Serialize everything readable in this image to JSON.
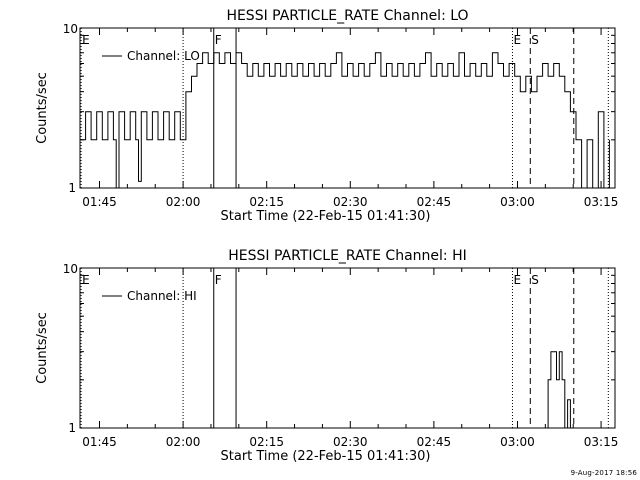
{
  "footer_date": "9-Aug-2017 18:56",
  "chart_data": [
    {
      "type": "line",
      "title": "HESSI PARTICLE_RATE Channel: LO",
      "xlabel": "Start Time (22-Feb-15 01:41:30)",
      "ylabel": "Counts/sec",
      "y_scale": "log",
      "ylim": [
        1,
        10
      ],
      "y_tick_labels": [
        "1",
        "10"
      ],
      "x_unit": "minutes after 01:41:30",
      "xlim": [
        0,
        96
      ],
      "x_ticks": [
        {
          "value": 3.5,
          "label": "01:45"
        },
        {
          "value": 18.5,
          "label": "02:00"
        },
        {
          "value": 33.5,
          "label": "02:15"
        },
        {
          "value": 48.5,
          "label": "02:30"
        },
        {
          "value": 63.5,
          "label": "02:45"
        },
        {
          "value": 78.5,
          "label": "03:00"
        },
        {
          "value": 93.5,
          "label": "03:15"
        }
      ],
      "legend": {
        "label": "Channel: LO",
        "position": "top-left"
      },
      "markers": [
        {
          "x": 0.2,
          "label": "E",
          "style": "dotted"
        },
        {
          "x": 18.5,
          "label": "",
          "style": "dotted"
        },
        {
          "x": 24.0,
          "label": "F",
          "style": "solid"
        },
        {
          "x": 28.0,
          "label": "",
          "style": "solid"
        },
        {
          "x": 77.6,
          "label": "E",
          "style": "dotted"
        },
        {
          "x": 80.8,
          "label": "S",
          "style": "dashed"
        },
        {
          "x": 88.6,
          "label": "",
          "style": "dashed"
        },
        {
          "x": 94.8,
          "label": "",
          "style": "dotted"
        }
      ],
      "series": [
        {
          "x": [
            0,
            1,
            2,
            3,
            4,
            5,
            6,
            6.5,
            7,
            8,
            9,
            10,
            10.5,
            11,
            12,
            13,
            14,
            15,
            16,
            17,
            18,
            18.5,
            19,
            20,
            21,
            22,
            23,
            24,
            25,
            26,
            27,
            28,
            29,
            30,
            31,
            32,
            33,
            34,
            35,
            36,
            37,
            38,
            39,
            40,
            41,
            42,
            43,
            44,
            45,
            46,
            47,
            48,
            49,
            50,
            51,
            52,
            53,
            54,
            55,
            56,
            57,
            58,
            59,
            60,
            61,
            62,
            63,
            64,
            65,
            66,
            67,
            68,
            69,
            70,
            71,
            72,
            73,
            74,
            75,
            76,
            77,
            78,
            79,
            80,
            81,
            82,
            83,
            84,
            85,
            86,
            87,
            88,
            89,
            90,
            90.5,
            91,
            92,
            93,
            94,
            95
          ],
          "y": [
            2,
            3,
            2,
            3,
            2,
            3,
            2,
            1,
            3,
            2,
            3,
            2,
            1.1,
            3,
            2,
            3,
            2,
            3,
            2,
            3,
            2,
            2,
            4,
            5,
            6,
            7,
            6,
            7,
            6,
            7,
            6,
            7,
            6,
            5,
            6,
            5,
            6,
            5,
            6,
            5,
            6,
            5,
            6,
            5,
            6,
            5,
            6,
            5,
            6,
            7,
            5,
            6,
            5,
            6,
            5,
            6,
            7,
            5,
            6,
            5,
            6,
            5,
            6,
            5,
            6,
            7,
            5,
            6,
            5,
            6,
            5,
            7,
            5,
            6,
            5,
            6,
            5,
            7,
            6,
            5,
            6,
            5,
            4,
            5,
            4,
            5,
            6,
            5,
            6,
            5,
            4,
            3,
            2,
            1,
            1,
            2,
            1,
            3,
            1,
            2
          ]
        }
      ]
    },
    {
      "type": "line",
      "title": "HESSI PARTICLE_RATE Channel: HI",
      "xlabel": "Start Time (22-Feb-15 01:41:30)",
      "ylabel": "Counts/sec",
      "y_scale": "log",
      "ylim": [
        1,
        10
      ],
      "y_tick_labels": [
        "1",
        "10"
      ],
      "x_unit": "minutes after 01:41:30",
      "xlim": [
        0,
        96
      ],
      "x_ticks": [
        {
          "value": 3.5,
          "label": "01:45"
        },
        {
          "value": 18.5,
          "label": "02:00"
        },
        {
          "value": 33.5,
          "label": "02:15"
        },
        {
          "value": 48.5,
          "label": "02:30"
        },
        {
          "value": 63.5,
          "label": "02:45"
        },
        {
          "value": 78.5,
          "label": "03:00"
        },
        {
          "value": 93.5,
          "label": "03:15"
        }
      ],
      "legend": {
        "label": "Channel: HI",
        "position": "top-left"
      },
      "markers": [
        {
          "x": 0.2,
          "label": "E",
          "style": "dotted"
        },
        {
          "x": 18.5,
          "label": "",
          "style": "dotted"
        },
        {
          "x": 24.0,
          "label": "F",
          "style": "solid"
        },
        {
          "x": 28.0,
          "label": "",
          "style": "solid"
        },
        {
          "x": 77.6,
          "label": "E",
          "style": "dotted"
        },
        {
          "x": 80.8,
          "label": "S",
          "style": "dashed"
        },
        {
          "x": 88.6,
          "label": "",
          "style": "dashed"
        },
        {
          "x": 94.8,
          "label": "",
          "style": "dotted"
        }
      ],
      "series": [
        {
          "x": [
            83.5,
            84,
            84.5,
            85,
            85.5,
            86,
            86.5,
            87,
            87.5,
            88
          ],
          "y": [
            1,
            2,
            3,
            3,
            2,
            3,
            2,
            1,
            1.5,
            1
          ]
        }
      ]
    }
  ]
}
